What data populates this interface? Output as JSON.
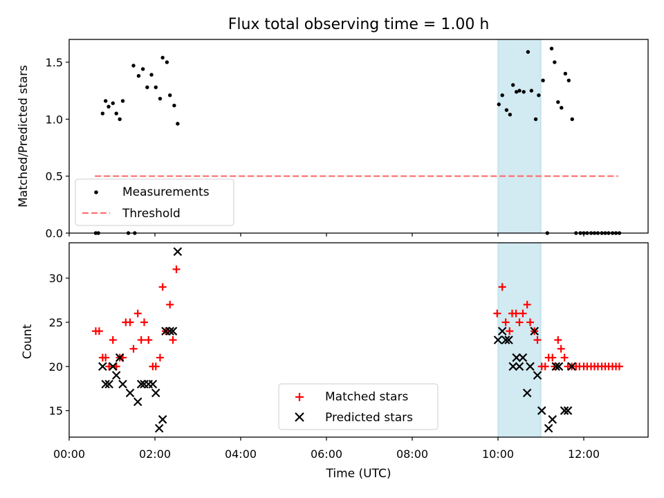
{
  "chart_data": [
    {
      "type": "scatter",
      "title": "Flux total observing time = 1.00 h",
      "xlabel": "",
      "ylabel": "Matched/Predicted stars",
      "xlim": [
        0.0,
        13.5
      ],
      "ylim": [
        0.0,
        1.7
      ],
      "yticks": [
        0.0,
        0.5,
        1.0,
        1.5
      ],
      "ytick_labels": [
        "0.0",
        "0.5",
        "1.0",
        "1.5"
      ],
      "highlight_span": [
        10.0,
        11.0
      ],
      "highlight_color": "#add8e6",
      "legend_position": "lower-left",
      "series": [
        {
          "name": "Measurements",
          "marker": "dot",
          "color": "#000000",
          "x": [
            0.62,
            0.68,
            0.78,
            0.85,
            0.92,
            1.02,
            1.1,
            1.18,
            1.25,
            1.38,
            1.5,
            1.53,
            1.62,
            1.72,
            1.82,
            1.92,
            2.02,
            2.12,
            2.18,
            2.28,
            2.35,
            2.45,
            2.53,
            10.02,
            10.1,
            10.2,
            10.28,
            10.35,
            10.43,
            10.5,
            10.6,
            10.7,
            10.78,
            10.88,
            10.95,
            11.05,
            11.15,
            11.25,
            11.32,
            11.4,
            11.48,
            11.57,
            11.65,
            11.73,
            11.82,
            11.92,
            12.0,
            12.08,
            12.17,
            12.25,
            12.33,
            12.42,
            12.5,
            12.58,
            12.67,
            12.75,
            12.83
          ],
          "y": [
            0.0,
            0.0,
            1.05,
            1.16,
            1.11,
            1.14,
            1.05,
            1.0,
            1.16,
            0.0,
            1.47,
            0.0,
            1.38,
            1.44,
            1.28,
            1.39,
            1.28,
            1.18,
            1.54,
            1.5,
            1.21,
            1.12,
            0.96,
            1.13,
            1.21,
            1.08,
            1.04,
            1.3,
            1.24,
            1.25,
            1.24,
            1.59,
            1.25,
            1.0,
            1.21,
            1.34,
            0.0,
            1.62,
            1.5,
            1.15,
            1.1,
            1.4,
            1.34,
            1.0,
            0.0,
            0.0,
            0.0,
            0.0,
            0.0,
            0.0,
            0.0,
            0.0,
            0.0,
            0.0,
            0.0,
            0.0,
            0.0
          ]
        },
        {
          "name": "Threshold",
          "style": "dashed",
          "color": "#ff7070",
          "x": [
            0.6,
            12.8
          ],
          "y": [
            0.5,
            0.5
          ]
        }
      ]
    },
    {
      "type": "scatter",
      "xlabel": "Time (UTC)",
      "ylabel": "Count",
      "xlim": [
        0.0,
        13.5
      ],
      "ylim": [
        12.0,
        34.0
      ],
      "xticks": [
        0,
        2,
        4,
        6,
        8,
        10,
        12
      ],
      "xtick_labels": [
        "00:00",
        "02:00",
        "04:00",
        "06:00",
        "08:00",
        "10:00",
        "12:00"
      ],
      "yticks": [
        15,
        20,
        25,
        30
      ],
      "ytick_labels": [
        "15",
        "20",
        "25",
        "30"
      ],
      "highlight_span": [
        10.0,
        11.0
      ],
      "highlight_color": "#add8e6",
      "legend_position": "lower-center",
      "series": [
        {
          "name": "Matched stars",
          "marker": "plus",
          "color": "#ff0000",
          "x": [
            0.62,
            0.7,
            0.78,
            0.85,
            0.93,
            1.02,
            1.1,
            1.18,
            1.25,
            1.32,
            1.42,
            1.5,
            1.6,
            1.68,
            1.75,
            1.85,
            1.95,
            2.02,
            2.12,
            2.18,
            2.25,
            2.35,
            2.42,
            2.5,
            9.98,
            10.1,
            10.18,
            10.27,
            10.33,
            10.42,
            10.5,
            10.58,
            10.68,
            10.75,
            10.85,
            10.92,
            11.02,
            11.1,
            11.18,
            11.27,
            11.32,
            11.4,
            11.47,
            11.55,
            11.63,
            11.72,
            11.82,
            11.9,
            12.0,
            12.08,
            12.17,
            12.25,
            12.33,
            12.42,
            12.5,
            12.58,
            12.67,
            12.75,
            12.83
          ],
          "y": [
            24,
            24,
            21,
            21,
            20,
            23,
            20,
            21,
            21,
            25,
            25,
            22,
            26,
            23,
            25,
            23,
            20,
            20,
            21,
            29,
            24,
            27,
            23,
            31,
            26,
            29,
            25,
            24,
            26,
            26,
            25,
            26,
            27,
            25,
            24,
            23,
            20,
            20,
            21,
            21,
            20,
            23,
            22,
            21,
            20,
            20,
            20,
            20,
            20,
            20,
            20,
            20,
            20,
            20,
            20,
            20,
            20,
            20,
            20
          ]
        },
        {
          "name": "Predicted stars",
          "marker": "x",
          "color": "#000000",
          "x": [
            0.78,
            0.85,
            0.93,
            1.02,
            1.1,
            1.18,
            1.25,
            1.42,
            1.6,
            1.68,
            1.75,
            1.85,
            1.95,
            2.02,
            2.1,
            2.18,
            2.25,
            2.35,
            2.42,
            2.53,
            10.0,
            10.1,
            10.18,
            10.25,
            10.35,
            10.43,
            10.5,
            10.58,
            10.68,
            10.75,
            10.85,
            10.92,
            11.02,
            11.18,
            11.27,
            11.35,
            11.42,
            11.55,
            11.63,
            11.72
          ],
          "y": [
            20,
            18,
            18,
            20,
            19,
            21,
            18,
            17,
            16,
            18,
            18,
            18,
            18,
            17,
            13,
            14,
            24,
            24,
            24,
            33,
            23,
            24,
            23,
            23,
            20,
            21,
            20,
            21,
            17,
            20,
            24,
            19,
            15,
            13,
            14,
            20,
            20,
            15,
            15,
            20
          ]
        }
      ]
    }
  ]
}
